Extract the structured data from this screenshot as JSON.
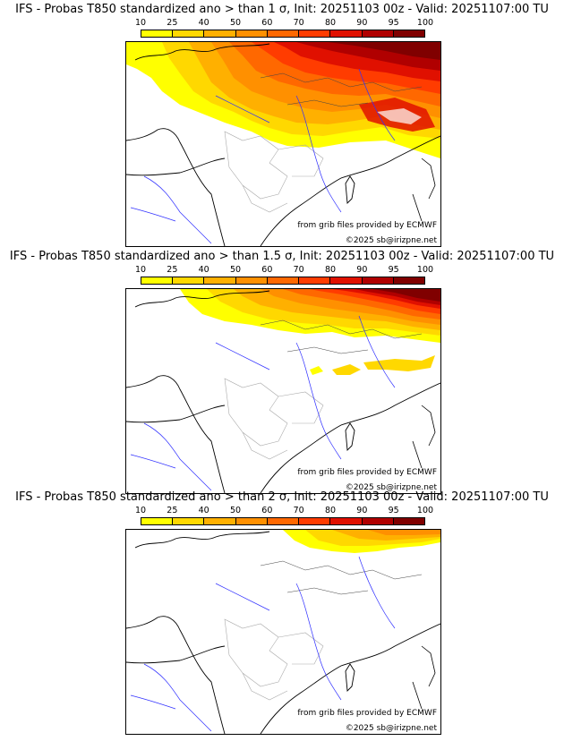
{
  "colorbar": {
    "labels": [
      "10",
      "25",
      "40",
      "50",
      "60",
      "70",
      "80",
      "90",
      "95",
      "100"
    ],
    "colors": [
      "#ffff00",
      "#ffd800",
      "#ffb000",
      "#ff9000",
      "#ff6800",
      "#ff3c00",
      "#e01000",
      "#b00000",
      "#800000"
    ]
  },
  "credits": {
    "source": "from grib files provided by ECMWF",
    "copyright": "©2025 sb@irizpne.net"
  },
  "panels": [
    {
      "title": "IFS - Probas T850  standardized ano > than 1 σ, Init: 20251103 00z - Valid: 20251107:00 TU",
      "sigma": 1
    },
    {
      "title": "IFS - Probas T850  standardized ano > than 1.5 σ, Init: 20251103 00z - Valid: 20251107:00 TU",
      "sigma": 1.5
    },
    {
      "title": "IFS - Probas T850  standardized ano > than 2 σ, Init: 20251103 00z - Valid: 20251107:00 TU",
      "sigma": 2
    }
  ]
}
